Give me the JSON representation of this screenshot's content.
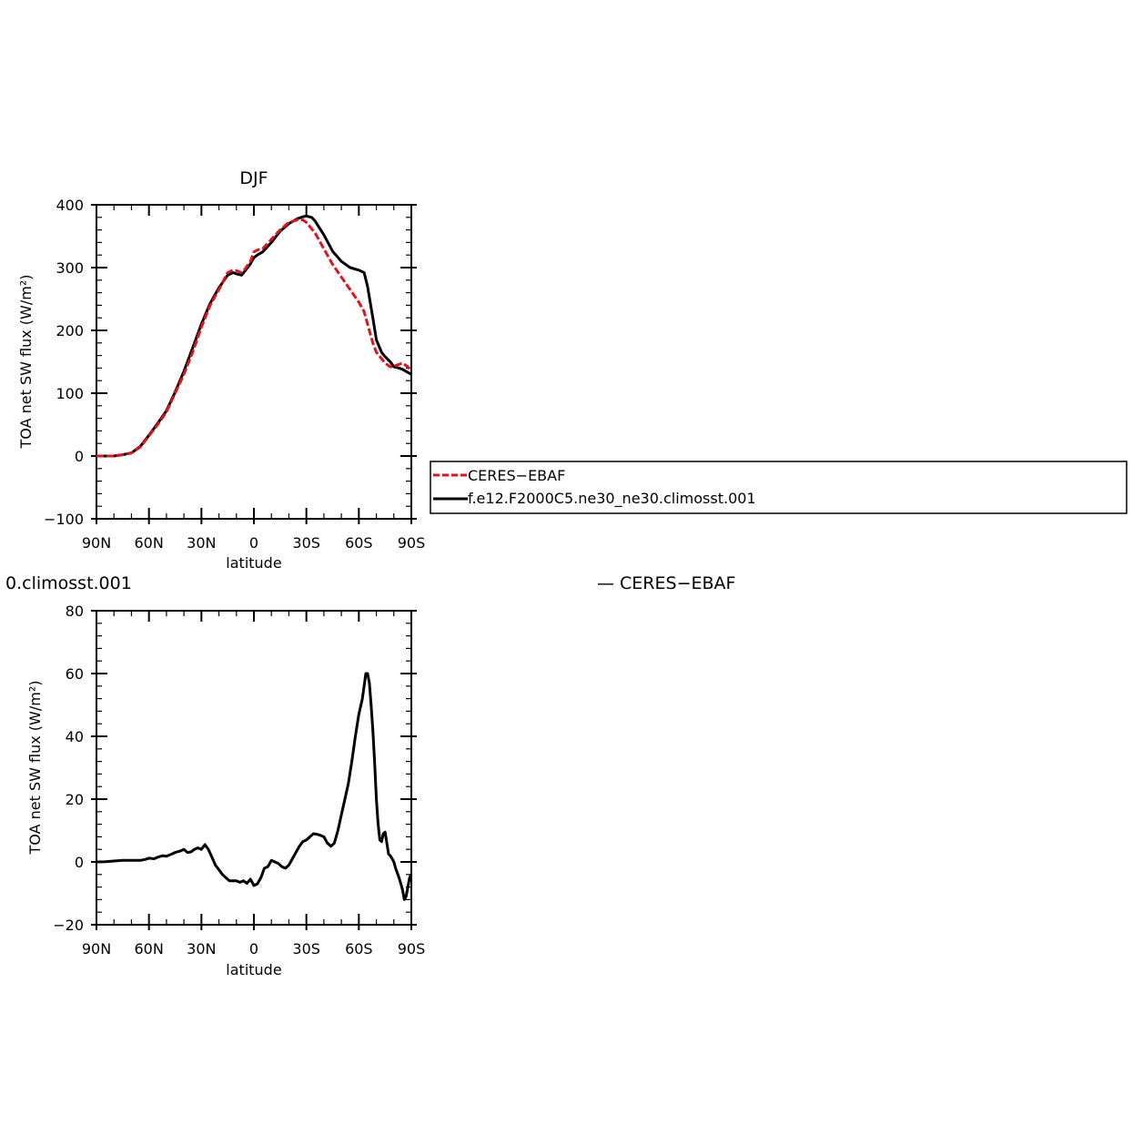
{
  "top_title": "DJF",
  "bottom_title_fragment": "0.climosst.001",
  "bottom_legend_fragment": "— CERES−EBAF",
  "legend": {
    "ref_label": "CERES−EBAF",
    "model_label": "f.e12.F2000C5.ne30_ne30.climosst.001"
  },
  "colors": {
    "ref": "#e0141e",
    "model": "#000000",
    "diff": "#000000"
  },
  "chart_data": [
    {
      "type": "line",
      "title": "DJF",
      "xlabel": "latitude",
      "ylabel": "TOA net SW flux (W/m²)",
      "xlim": [
        90,
        -90
      ],
      "ylim": [
        -100,
        400
      ],
      "x_ticks": [
        90,
        60,
        30,
        0,
        -30,
        -60,
        -90
      ],
      "x_tick_labels": [
        "90N",
        "60N",
        "30N",
        "0",
        "30S",
        "60S",
        "90S"
      ],
      "y_ticks": [
        -100,
        0,
        100,
        200,
        300,
        400
      ],
      "y_tick_labels": [
        "−100",
        "0",
        "100",
        "200",
        "300",
        "400"
      ],
      "legend_position": "right",
      "series": [
        {
          "name": "CERES−EBAF",
          "style": "dashed",
          "x": [
            90,
            85,
            80,
            75,
            70,
            65,
            60,
            55,
            50,
            45,
            40,
            35,
            30,
            25,
            20,
            15,
            12,
            10,
            7,
            5,
            2,
            0,
            -2,
            -5,
            -10,
            -15,
            -20,
            -25,
            -28,
            -30,
            -35,
            -40,
            -45,
            -50,
            -55,
            -60,
            -63,
            -65,
            -68,
            -70,
            -73,
            -75,
            -78,
            -80,
            -83,
            -85,
            -88,
            -90
          ],
          "y": [
            0,
            0,
            0,
            2,
            5,
            14,
            32,
            50,
            70,
            100,
            130,
            165,
            205,
            240,
            265,
            292,
            296,
            295,
            292,
            298,
            310,
            325,
            328,
            330,
            345,
            360,
            372,
            376,
            376,
            372,
            355,
            330,
            305,
            285,
            265,
            245,
            230,
            210,
            180,
            165,
            155,
            148,
            142,
            143,
            146,
            148,
            142,
            135
          ]
        },
        {
          "name": "f.e12.F2000C5.ne30_ne30.climosst.001",
          "style": "solid",
          "x": [
            90,
            85,
            80,
            75,
            70,
            65,
            60,
            55,
            50,
            45,
            40,
            35,
            30,
            25,
            20,
            15,
            12,
            10,
            7,
            5,
            2,
            0,
            -2,
            -5,
            -10,
            -15,
            -20,
            -25,
            -28,
            -30,
            -33,
            -35,
            -40,
            -45,
            -50,
            -55,
            -60,
            -63,
            -65,
            -68,
            -70,
            -73,
            -75,
            -78,
            -80,
            -83,
            -85,
            -88,
            -90
          ],
          "y": [
            0,
            0,
            0,
            2,
            5,
            15,
            33,
            52,
            72,
            102,
            135,
            172,
            210,
            243,
            268,
            288,
            292,
            290,
            288,
            295,
            306,
            316,
            320,
            325,
            340,
            358,
            370,
            378,
            381,
            382,
            380,
            374,
            352,
            326,
            310,
            300,
            296,
            292,
            270,
            220,
            185,
            165,
            158,
            150,
            142,
            140,
            138,
            133,
            130
          ]
        }
      ]
    },
    {
      "type": "line",
      "title": "",
      "xlabel": "latitude",
      "ylabel": "TOA net SW flux (W/m²)",
      "xlim": [
        90,
        -90
      ],
      "ylim": [
        -20,
        80
      ],
      "x_ticks": [
        90,
        60,
        30,
        0,
        -30,
        -60,
        -90
      ],
      "x_tick_labels": [
        "90N",
        "60N",
        "30N",
        "0",
        "30S",
        "60S",
        "90S"
      ],
      "y_ticks": [
        -20,
        0,
        20,
        40,
        60,
        80
      ],
      "y_tick_labels": [
        "−20",
        "0",
        "20",
        "40",
        "60",
        "80"
      ],
      "series": [
        {
          "style": "solid",
          "x": [
            90,
            85,
            80,
            75,
            70,
            65,
            62,
            60,
            57,
            55,
            52,
            50,
            47,
            45,
            42,
            40,
            38,
            36,
            34,
            32,
            30,
            28,
            26,
            24,
            22,
            20,
            18,
            16,
            14,
            12,
            10,
            8,
            6,
            4,
            2,
            0,
            -2,
            -4,
            -6,
            -8,
            -10,
            -12,
            -14,
            -16,
            -18,
            -20,
            -22,
            -24,
            -26,
            -28,
            -30,
            -32,
            -34,
            -36,
            -38,
            -40,
            -42,
            -44,
            -46,
            -48,
            -50,
            -52,
            -54,
            -56,
            -58,
            -60,
            -62,
            -63,
            -64,
            -65,
            -66,
            -67,
            -68,
            -69,
            -70,
            -71,
            -72,
            -73,
            -74,
            -75,
            -76,
            -77,
            -78,
            -79,
            -80,
            -81,
            -82,
            -83,
            -84,
            -85,
            -86,
            -87,
            -88,
            -89,
            -90
          ],
          "y": [
            0,
            0.1,
            0.3,
            0.5,
            0.5,
            0.5,
            0.8,
            1.2,
            1.0,
            1.5,
            2.0,
            1.8,
            2.5,
            3.0,
            3.5,
            4.0,
            3.0,
            3.2,
            4.0,
            4.5,
            4.0,
            5.5,
            4.0,
            1.5,
            -1.0,
            -2.5,
            -4.0,
            -5.0,
            -6.0,
            -6.0,
            -6.0,
            -6.5,
            -6.0,
            -6.8,
            -5.5,
            -7.5,
            -7.0,
            -5.0,
            -2.0,
            -1.5,
            0.5,
            0.0,
            -0.5,
            -1.5,
            -2.0,
            -1.0,
            1.0,
            3.0,
            5.0,
            6.5,
            7.0,
            8.0,
            9.0,
            8.8,
            8.5,
            8.0,
            6.0,
            5.0,
            6.0,
            10.0,
            15.0,
            20.0,
            25.0,
            32.0,
            40.0,
            47.0,
            52.0,
            56.0,
            60.0,
            60.0,
            57.0,
            50.0,
            42.0,
            32.0,
            20.0,
            12.0,
            7.0,
            6.5,
            9.0,
            9.5,
            6.0,
            2.5,
            2.0,
            1.0,
            0.0,
            -2.0,
            -3.5,
            -5.0,
            -7.0,
            -9.0,
            -12.0,
            -11.0,
            -8.0,
            -5.0,
            -4.0
          ]
        }
      ]
    }
  ]
}
